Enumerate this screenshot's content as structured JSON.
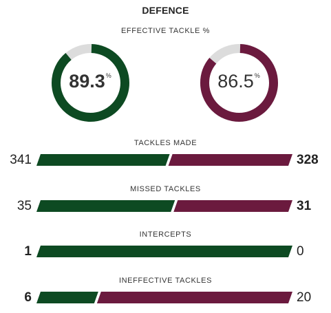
{
  "section_title": "DEFENCE",
  "effective_tackle": {
    "label": "EFFECTIVE TACKLE %",
    "home": {
      "value": "89.3",
      "unit": "%",
      "fraction": 0.893
    },
    "away": {
      "value": "86.5",
      "unit": "%",
      "fraction": 0.865
    }
  },
  "colors": {
    "home": "#0d4a22",
    "away": "#6b1a3e",
    "track": "#dcdcdc"
  },
  "stats": [
    {
      "label": "TACKLES MADE",
      "home": "341",
      "away": "328",
      "home_value": 341,
      "away_value": 328,
      "bold": "away"
    },
    {
      "label": "MISSED TACKLES",
      "home": "35",
      "away": "31",
      "home_value": 35,
      "away_value": 31,
      "bold": "away"
    },
    {
      "label": "INTERCEPTS",
      "home": "1",
      "away": "0",
      "home_value": 1,
      "away_value": 0,
      "bold": "home"
    },
    {
      "label": "INEFFECTIVE TACKLES",
      "home": "6",
      "away": "20",
      "home_value": 6,
      "away_value": 20,
      "bold": "home"
    }
  ]
}
